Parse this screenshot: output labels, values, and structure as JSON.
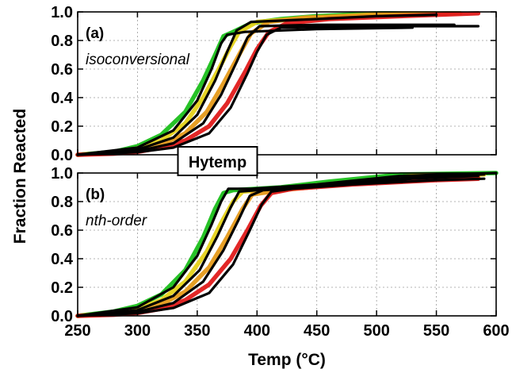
{
  "chart_data": {
    "type": "line",
    "shared_x": {
      "label": "Temp (°C)",
      "range": [
        250,
        600
      ],
      "ticks": [
        250,
        300,
        350,
        400,
        450,
        500,
        550,
        600
      ]
    },
    "shared_y_label": "Fraction Reacted",
    "center_label": "Hytemp",
    "grid": true,
    "colors": {
      "green": "#1bbf1b",
      "yellow": "#e5d21a",
      "orange": "#e59a1a",
      "red": "#e01b1b",
      "fit": "#000000"
    },
    "panels": [
      {
        "tag": "(a)",
        "method": "isoconversional",
        "ylim": [
          0,
          1.0
        ],
        "yticks": [
          "0.0",
          "0.2",
          "0.4",
          "0.6",
          "0.8",
          "1.0"
        ],
        "series": [
          {
            "color": "green",
            "points": [
              [
                250,
                0
              ],
              [
                280,
                0.02
              ],
              [
                300,
                0.06
              ],
              [
                320,
                0.14
              ],
              [
                340,
                0.3
              ],
              [
                355,
                0.52
              ],
              [
                365,
                0.7
              ],
              [
                372,
                0.83
              ],
              [
                380,
                0.86
              ],
              [
                395,
                0.92
              ],
              [
                420,
                0.95
              ],
              [
                450,
                0.97
              ],
              [
                500,
                0.99
              ],
              [
                530,
                0.99
              ]
            ]
          },
          {
            "color": "yellow",
            "points": [
              [
                250,
                0
              ],
              [
                280,
                0.015
              ],
              [
                300,
                0.045
              ],
              [
                320,
                0.1
              ],
              [
                340,
                0.22
              ],
              [
                355,
                0.4
              ],
              [
                368,
                0.6
              ],
              [
                378,
                0.76
              ],
              [
                385,
                0.86
              ],
              [
                400,
                0.93
              ],
              [
                430,
                0.95
              ],
              [
                470,
                0.97
              ],
              [
                520,
                0.99
              ],
              [
                550,
                0.99
              ]
            ]
          },
          {
            "color": "orange",
            "points": [
              [
                250,
                0
              ],
              [
                280,
                0.01
              ],
              [
                300,
                0.03
              ],
              [
                320,
                0.07
              ],
              [
                340,
                0.15
              ],
              [
                358,
                0.3
              ],
              [
                372,
                0.5
              ],
              [
                385,
                0.7
              ],
              [
                395,
                0.85
              ],
              [
                410,
                0.93
              ],
              [
                440,
                0.96
              ],
              [
                500,
                0.98
              ],
              [
                560,
                0.99
              ],
              [
                570,
                0.99
              ]
            ]
          },
          {
            "color": "red",
            "points": [
              [
                250,
                0
              ],
              [
                280,
                0.008
              ],
              [
                300,
                0.02
              ],
              [
                320,
                0.05
              ],
              [
                340,
                0.1
              ],
              [
                360,
                0.2
              ],
              [
                375,
                0.36
              ],
              [
                390,
                0.58
              ],
              [
                400,
                0.74
              ],
              [
                410,
                0.86
              ],
              [
                425,
                0.92
              ],
              [
                460,
                0.95
              ],
              [
                520,
                0.97
              ],
              [
                585,
                0.99
              ]
            ]
          },
          {
            "color": "fit",
            "points": [
              [
                250,
                0
              ],
              [
                300,
                0.05
              ],
              [
                330,
                0.17
              ],
              [
                350,
                0.38
              ],
              [
                362,
                0.6
              ],
              [
                370,
                0.78
              ],
              [
                375,
                0.84
              ],
              [
                390,
                0.86
              ],
              [
                450,
                0.88
              ],
              [
                530,
                0.89
              ]
            ]
          },
          {
            "color": "fit",
            "points": [
              [
                250,
                0
              ],
              [
                300,
                0.035
              ],
              [
                330,
                0.12
              ],
              [
                350,
                0.28
              ],
              [
                365,
                0.52
              ],
              [
                375,
                0.72
              ],
              [
                383,
                0.87
              ],
              [
                395,
                0.93
              ],
              [
                450,
                0.95
              ],
              [
                500,
                0.97
              ],
              [
                550,
                0.98
              ]
            ]
          },
          {
            "color": "fit",
            "points": [
              [
                250,
                0
              ],
              [
                300,
                0.025
              ],
              [
                330,
                0.08
              ],
              [
                355,
                0.22
              ],
              [
                370,
                0.42
              ],
              [
                383,
                0.65
              ],
              [
                392,
                0.82
              ],
              [
                402,
                0.9
              ],
              [
                450,
                0.91
              ],
              [
                530,
                0.91
              ],
              [
                565,
                0.91
              ]
            ]
          },
          {
            "color": "fit",
            "points": [
              [
                250,
                0
              ],
              [
                300,
                0.018
              ],
              [
                330,
                0.05
              ],
              [
                360,
                0.15
              ],
              [
                378,
                0.33
              ],
              [
                392,
                0.57
              ],
              [
                400,
                0.72
              ],
              [
                408,
                0.84
              ],
              [
                420,
                0.89
              ],
              [
                480,
                0.9
              ],
              [
                585,
                0.9
              ]
            ]
          }
        ]
      },
      {
        "tag": "(b)",
        "method": "nth-order",
        "ylim": [
          0,
          1.0
        ],
        "yticks": [
          "0.0",
          "0.2",
          "0.4",
          "0.6",
          "0.8",
          "1.0"
        ],
        "series": [
          {
            "color": "green",
            "points": [
              [
                250,
                0
              ],
              [
                280,
                0.03
              ],
              [
                300,
                0.07
              ],
              [
                320,
                0.15
              ],
              [
                340,
                0.32
              ],
              [
                355,
                0.55
              ],
              [
                365,
                0.75
              ],
              [
                372,
                0.86
              ],
              [
                380,
                0.88
              ],
              [
                420,
                0.9
              ],
              [
                460,
                0.94
              ],
              [
                520,
                0.99
              ],
              [
                600,
                1.0
              ]
            ]
          },
          {
            "color": "yellow",
            "points": [
              [
                250,
                0
              ],
              [
                280,
                0.02
              ],
              [
                300,
                0.05
              ],
              [
                320,
                0.11
              ],
              [
                340,
                0.24
              ],
              [
                358,
                0.45
              ],
              [
                370,
                0.65
              ],
              [
                380,
                0.8
              ],
              [
                388,
                0.87
              ],
              [
                420,
                0.89
              ],
              [
                470,
                0.93
              ],
              [
                530,
                0.98
              ],
              [
                590,
                0.99
              ]
            ]
          },
          {
            "color": "orange",
            "points": [
              [
                250,
                0
              ],
              [
                280,
                0.012
              ],
              [
                300,
                0.035
              ],
              [
                320,
                0.08
              ],
              [
                340,
                0.17
              ],
              [
                360,
                0.34
              ],
              [
                375,
                0.55
              ],
              [
                388,
                0.75
              ],
              [
                396,
                0.85
              ],
              [
                420,
                0.88
              ],
              [
                470,
                0.92
              ],
              [
                530,
                0.96
              ],
              [
                585,
                0.97
              ]
            ]
          },
          {
            "color": "red",
            "points": [
              [
                250,
                0
              ],
              [
                280,
                0.008
              ],
              [
                300,
                0.02
              ],
              [
                320,
                0.05
              ],
              [
                340,
                0.11
              ],
              [
                360,
                0.22
              ],
              [
                378,
                0.4
              ],
              [
                392,
                0.6
              ],
              [
                403,
                0.77
              ],
              [
                412,
                0.86
              ],
              [
                430,
                0.89
              ],
              [
                480,
                0.92
              ],
              [
                550,
                0.95
              ],
              [
                585,
                0.96
              ]
            ]
          },
          {
            "color": "fit",
            "points": [
              [
                250,
                0
              ],
              [
                300,
                0.06
              ],
              [
                330,
                0.2
              ],
              [
                350,
                0.42
              ],
              [
                362,
                0.64
              ],
              [
                370,
                0.8
              ],
              [
                376,
                0.89
              ],
              [
                395,
                0.89
              ],
              [
                450,
                0.92
              ],
              [
                520,
                0.98
              ],
              [
                600,
                1.0
              ]
            ]
          },
          {
            "color": "fit",
            "points": [
              [
                250,
                0
              ],
              [
                300,
                0.04
              ],
              [
                330,
                0.14
              ],
              [
                352,
                0.32
              ],
              [
                367,
                0.56
              ],
              [
                378,
                0.76
              ],
              [
                385,
                0.87
              ],
              [
                400,
                0.88
              ],
              [
                460,
                0.92
              ],
              [
                530,
                0.97
              ],
              [
                590,
                0.99
              ]
            ]
          },
          {
            "color": "fit",
            "points": [
              [
                250,
                0
              ],
              [
                300,
                0.028
              ],
              [
                330,
                0.09
              ],
              [
                355,
                0.24
              ],
              [
                372,
                0.46
              ],
              [
                385,
                0.68
              ],
              [
                394,
                0.84
              ],
              [
                405,
                0.88
              ],
              [
                460,
                0.91
              ],
              [
                530,
                0.96
              ],
              [
                585,
                0.98
              ]
            ]
          },
          {
            "color": "fit",
            "points": [
              [
                250,
                0
              ],
              [
                300,
                0.018
              ],
              [
                330,
                0.055
              ],
              [
                360,
                0.16
              ],
              [
                380,
                0.36
              ],
              [
                394,
                0.6
              ],
              [
                404,
                0.78
              ],
              [
                412,
                0.87
              ],
              [
                430,
                0.89
              ],
              [
                480,
                0.92
              ],
              [
                550,
                0.95
              ],
              [
                590,
                0.96
              ]
            ]
          }
        ]
      }
    ]
  }
}
